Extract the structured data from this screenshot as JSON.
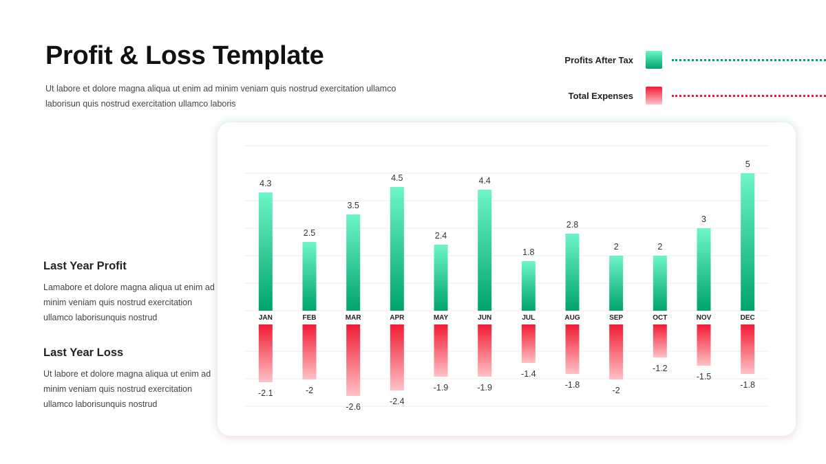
{
  "header": {
    "title": "Profit & Loss Template",
    "subtitle": "Ut labore et dolore magna aliqua ut enim ad minim veniam quis nostrud exercitation ullamco laborisun quis nostrud exercitation ullamco laboris"
  },
  "legend": {
    "profit_label": "Profits After Tax",
    "expense_label": "Total Expenses"
  },
  "side": {
    "profit_heading": "Last Year Profit",
    "profit_text": "Lamabore et dolore magna aliqua ut enim ad minim veniam quis nostrud exercitation ullamco laborisunquis nostrud",
    "loss_heading": "Last Year Loss",
    "loss_text": "Ut labore et dolore magna aliqua ut enim ad minim veniam quis nostrud exercitation ullamco laborisunquis nostrud"
  },
  "colors": {
    "profit_top": "#6ef5c6",
    "profit_bottom": "#00a46a",
    "loss_top": "#f01c34",
    "loss_bottom": "#ffc1c6"
  },
  "chart_data": {
    "type": "bar",
    "categories": [
      "JAN",
      "FEB",
      "MAR",
      "APR",
      "MAY",
      "JUN",
      "JUL",
      "AUG",
      "SEP",
      "OCT",
      "NOV",
      "DEC"
    ],
    "series": [
      {
        "name": "Profits After Tax",
        "values": [
          4.3,
          2.5,
          3.5,
          4.5,
          2.4,
          4.4,
          1.8,
          2.8,
          2,
          2,
          3,
          5
        ]
      },
      {
        "name": "Total Expenses",
        "values": [
          -2.1,
          -2,
          -2.6,
          -2.4,
          -1.9,
          -1.9,
          -1.4,
          -1.8,
          -2,
          -1.2,
          -1.5,
          -1.8
        ]
      }
    ],
    "title": "",
    "xlabel": "",
    "ylabel": "",
    "ylim": [
      -3,
      6
    ],
    "grid": true,
    "legend_position": "top-right"
  }
}
